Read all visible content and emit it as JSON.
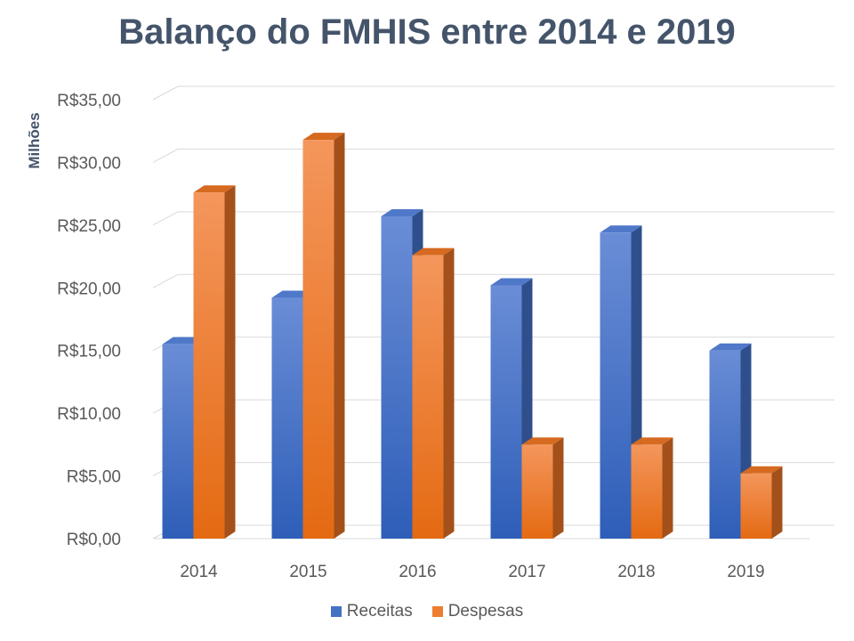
{
  "chart_data": {
    "type": "bar",
    "title": "Balanço do FMHIS entre 2014 e 2019",
    "ylabel": "Milhões",
    "xlabel": "",
    "categories": [
      "2014",
      "2015",
      "2016",
      "2017",
      "2018",
      "2019"
    ],
    "series": [
      {
        "name": "Receitas",
        "values": [
          15.5,
          19.2,
          25.7,
          20.2,
          24.4,
          15.0
        ],
        "color": "#4472C4"
      },
      {
        "name": "Despesas",
        "values": [
          27.6,
          31.8,
          22.6,
          7.5,
          7.5,
          5.2
        ],
        "color": "#ED7D31"
      }
    ],
    "ylim": [
      0,
      35
    ],
    "yticks": [
      "R$0,00",
      "R$5,00",
      "R$10,00",
      "R$15,00",
      "R$20,00",
      "R$25,00",
      "R$30,00",
      "R$35,00"
    ],
    "grid": true,
    "legend_position": "bottom",
    "style": "3d-clustered-column"
  }
}
